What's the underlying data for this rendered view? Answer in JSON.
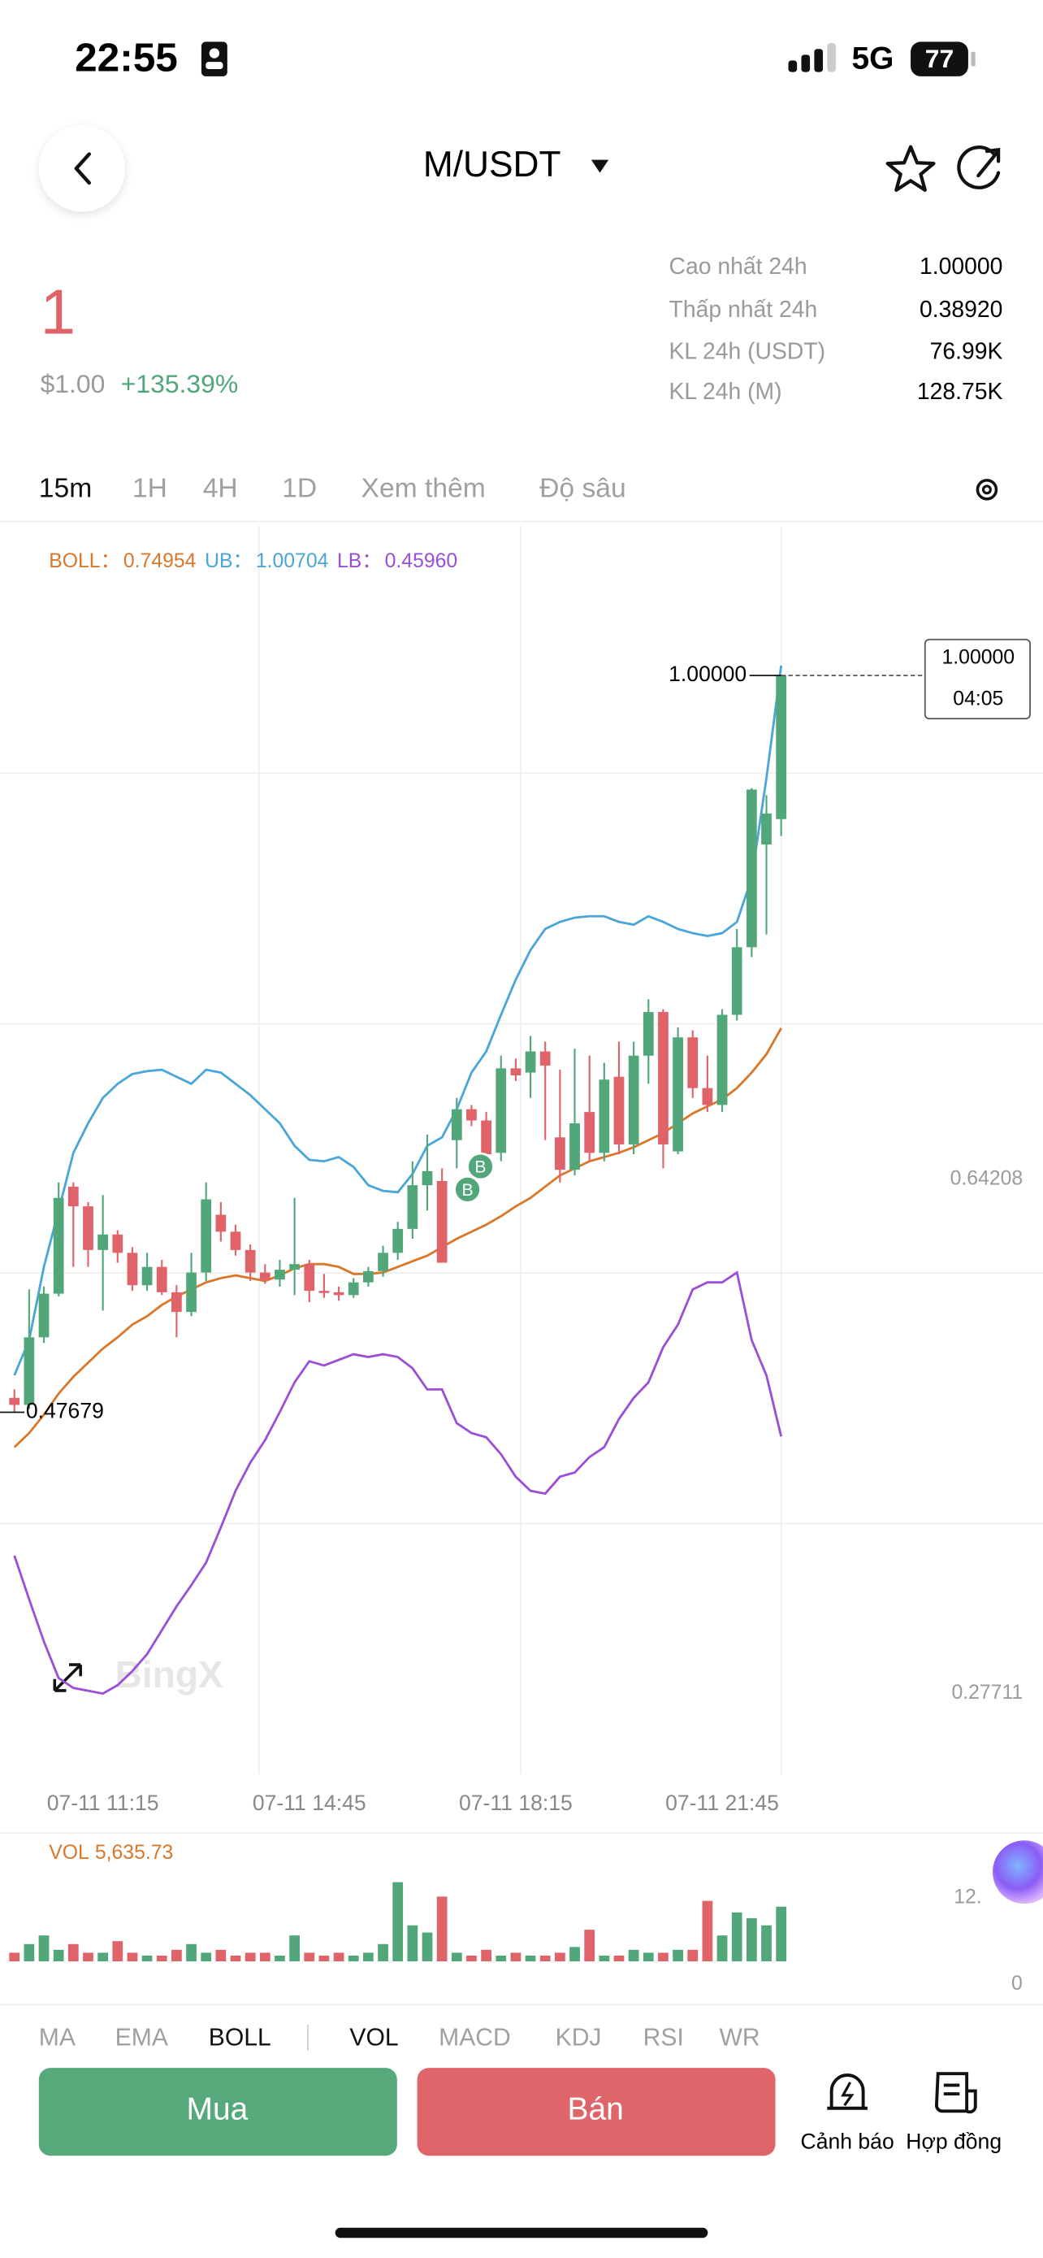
{
  "status_bar": {
    "time": "22:55",
    "network": "5G",
    "battery": "77"
  },
  "header": {
    "pair": "M/USDT"
  },
  "price": {
    "last": "1",
    "usd": "$1.00",
    "change": "+135.39%"
  },
  "stats": [
    {
      "label": "Cao nhất 24h",
      "value": "1.00000"
    },
    {
      "label": "Thấp nhất 24h",
      "value": "0.38920"
    },
    {
      "label": "KL 24h (USDT)",
      "value": "76.99K"
    },
    {
      "label": "KL 24h (M)",
      "value": "128.75K"
    }
  ],
  "timeframes": [
    "15m",
    "1H",
    "4H",
    "1D",
    "Xem thêm",
    "Độ sâu"
  ],
  "chart_data": {
    "type": "candlestick",
    "up_color": "#52a77a",
    "down_color": "#e0636a",
    "ylim": [
      0.2198,
      1.1064
    ],
    "yticks": [
      0.64208,
      0.27711
    ],
    "categories": [
      null,
      null,
      null,
      null,
      null,
      null,
      "07-11 11:15",
      null,
      null,
      null,
      null,
      null,
      null,
      null,
      null,
      null,
      null,
      null,
      null,
      null,
      "07-11 14:45",
      null,
      null,
      null,
      null,
      null,
      null,
      null,
      null,
      null,
      null,
      null,
      null,
      null,
      "07-11 18:15",
      null,
      null,
      null,
      null,
      null,
      null,
      null,
      null,
      null,
      null,
      null,
      null,
      null,
      "07-11 21:45",
      null,
      null,
      null,
      null
    ],
    "candles": [
      [
        0.487,
        0.493,
        0.47679,
        0.482
      ],
      [
        0.482,
        0.564,
        0.479,
        0.53
      ],
      [
        0.53,
        0.566,
        0.526,
        0.561
      ],
      [
        0.561,
        0.64,
        0.559,
        0.629
      ],
      [
        0.637,
        0.64,
        0.58,
        0.623
      ],
      [
        0.623,
        0.626,
        0.58,
        0.592
      ],
      [
        0.592,
        0.631,
        0.549,
        0.603
      ],
      [
        0.603,
        0.606,
        0.583,
        0.59
      ],
      [
        0.59,
        0.594,
        0.563,
        0.567
      ],
      [
        0.567,
        0.59,
        0.563,
        0.58
      ],
      [
        0.58,
        0.585,
        0.56,
        0.562
      ],
      [
        0.562,
        0.567,
        0.53,
        0.548
      ],
      [
        0.548,
        0.59,
        0.545,
        0.576
      ],
      [
        0.576,
        0.64,
        0.57,
        0.628
      ],
      [
        0.617,
        0.626,
        0.598,
        0.605
      ],
      [
        0.605,
        0.61,
        0.588,
        0.592
      ],
      [
        0.592,
        0.596,
        0.57,
        0.576
      ],
      [
        0.576,
        0.582,
        0.568,
        0.571
      ],
      [
        0.571,
        0.585,
        0.566,
        0.578
      ],
      [
        0.578,
        0.629,
        0.56,
        0.582
      ],
      [
        0.582,
        0.585,
        0.555,
        0.563
      ],
      [
        0.563,
        0.575,
        0.558,
        0.562
      ],
      [
        0.562,
        0.566,
        0.556,
        0.56
      ],
      [
        0.56,
        0.572,
        0.558,
        0.569
      ],
      [
        0.569,
        0.58,
        0.566,
        0.577
      ],
      [
        0.577,
        0.595,
        0.573,
        0.59
      ],
      [
        0.59,
        0.612,
        0.585,
        0.607
      ],
      [
        0.607,
        0.655,
        0.6,
        0.638
      ],
      [
        0.638,
        0.674,
        0.62,
        0.648
      ],
      [
        0.641,
        0.65,
        0.583,
        0.583
      ],
      [
        0.67,
        0.7,
        0.65,
        0.692
      ],
      [
        0.692,
        0.695,
        0.68,
        0.684
      ],
      [
        0.684,
        0.69,
        0.65,
        0.66
      ],
      [
        0.661,
        0.73,
        0.655,
        0.721
      ],
      [
        0.721,
        0.728,
        0.712,
        0.716
      ],
      [
        0.718,
        0.744,
        0.7,
        0.733
      ],
      [
        0.733,
        0.74,
        0.67,
        0.723
      ],
      [
        0.672,
        0.72,
        0.64,
        0.649
      ],
      [
        0.649,
        0.735,
        0.645,
        0.682
      ],
      [
        0.69,
        0.73,
        0.655,
        0.661
      ],
      [
        0.661,
        0.725,
        0.655,
        0.713
      ],
      [
        0.715,
        0.74,
        0.66,
        0.667
      ],
      [
        0.667,
        0.74,
        0.66,
        0.73
      ],
      [
        0.73,
        0.77,
        0.71,
        0.761
      ],
      [
        0.761,
        0.763,
        0.65,
        0.667
      ],
      [
        0.662,
        0.75,
        0.66,
        0.743
      ],
      [
        0.743,
        0.748,
        0.7,
        0.707
      ],
      [
        0.707,
        0.73,
        0.69,
        0.695
      ],
      [
        0.695,
        0.763,
        0.69,
        0.759
      ],
      [
        0.759,
        0.82,
        0.755,
        0.807
      ],
      [
        0.807,
        0.92,
        0.8,
        0.919
      ],
      [
        0.88,
        0.915,
        0.816,
        0.902
      ],
      [
        0.898,
        1,
        0.886,
        1
      ]
    ],
    "series": [
      {
        "name": "BOLL：",
        "color": "#d9782a",
        "value_label": "0.74954",
        "values": [
          0.452,
          0.462,
          0.475,
          0.49,
          0.502,
          0.512,
          0.522,
          0.53,
          0.539,
          0.545,
          0.553,
          0.559,
          0.564,
          0.569,
          0.572,
          0.574,
          0.572,
          0.57,
          0.574,
          0.579,
          0.582,
          0.582,
          0.58,
          0.575,
          0.575,
          0.576,
          0.58,
          0.584,
          0.588,
          0.594,
          0.6,
          0.605,
          0.61,
          0.616,
          0.623,
          0.629,
          0.637,
          0.645,
          0.65,
          0.655,
          0.658,
          0.661,
          0.665,
          0.67,
          0.675,
          0.682,
          0.689,
          0.694,
          0.699,
          0.707,
          0.718,
          0.731,
          0.74954
        ]
      },
      {
        "name": "UB：",
        "color": "#4aa6d8",
        "value_label": "1.00704",
        "values": [
          0.503,
          0.528,
          0.58,
          0.62,
          0.661,
          0.682,
          0.7,
          0.71,
          0.717,
          0.719,
          0.72,
          0.715,
          0.71,
          0.72,
          0.718,
          0.71,
          0.702,
          0.692,
          0.682,
          0.666,
          0.656,
          0.655,
          0.658,
          0.651,
          0.638,
          0.634,
          0.633,
          0.646,
          0.666,
          0.672,
          0.692,
          0.718,
          0.733,
          0.759,
          0.784,
          0.805,
          0.82,
          0.825,
          0.828,
          0.829,
          0.829,
          0.825,
          0.823,
          0.829,
          0.825,
          0.82,
          0.817,
          0.815,
          0.817,
          0.825,
          0.856,
          0.927,
          1.00704
        ]
      },
      {
        "name": "LB：",
        "color": "#9b4fd6",
        "value_label": "0.45960",
        "values": [
          0.375,
          0.344,
          0.314,
          0.288,
          0.281,
          0.279,
          0.277,
          0.283,
          0.293,
          0.305,
          0.322,
          0.339,
          0.354,
          0.37,
          0.395,
          0.421,
          0.441,
          0.457,
          0.477,
          0.498,
          0.513,
          0.51,
          0.514,
          0.518,
          0.516,
          0.518,
          0.516,
          0.508,
          0.493,
          0.493,
          0.469,
          0.462,
          0.459,
          0.447,
          0.431,
          0.421,
          0.419,
          0.431,
          0.434,
          0.445,
          0.452,
          0.472,
          0.487,
          0.498,
          0.523,
          0.539,
          0.564,
          0.569,
          0.569,
          0.576,
          0.528,
          0.503,
          0.4596
        ]
      }
    ],
    "max_marker": {
      "value": 1,
      "label": "1.00000"
    },
    "min_marker": {
      "value": 0.47679,
      "label": "0.47679"
    },
    "last_price": {
      "value": 1,
      "label": "1.00000"
    },
    "countdown": "04:05",
    "trade_markers": [
      "B",
      "B"
    ],
    "watermark": "BingX",
    "volume": {
      "name": "VOL",
      "value_label": "5,635.73",
      "ylim": [
        0,
        9200
      ],
      "tick_labels": [
        "12.",
        "0"
      ],
      "values": [
        890,
        1780,
        2670,
        1190,
        1780,
        890,
        890,
        2080,
        890,
        590,
        590,
        1190,
        1780,
        890,
        1190,
        590,
        890,
        890,
        590,
        2670,
        890,
        590,
        890,
        590,
        890,
        1780,
        8160,
        3710,
        2970,
        6670,
        890,
        590,
        1190,
        590,
        890,
        590,
        590,
        890,
        1480,
        3260,
        590,
        590,
        1190,
        890,
        890,
        1190,
        1190,
        6230,
        2670,
        5040,
        4450,
        3710,
        5635.73
      ]
    }
  },
  "indicators": [
    "MA",
    "EMA",
    "BOLL",
    "VOL",
    "MACD",
    "KDJ",
    "RSI",
    "WR"
  ],
  "actions": {
    "buy": "Mua",
    "sell": "Bán",
    "alert": "Cảnh báo",
    "contract": "Hợp đồng"
  }
}
